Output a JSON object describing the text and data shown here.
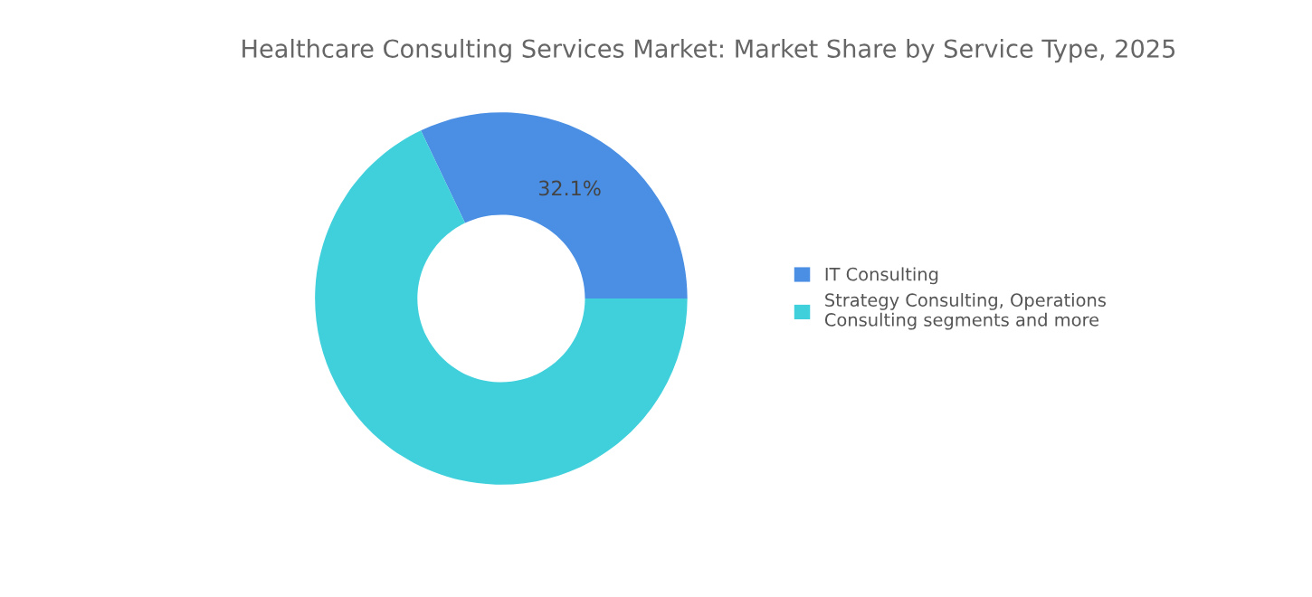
{
  "chart_data": {
    "type": "donut",
    "title": "Healthcare Consulting Services Market: Market Share by Service Type, 2025",
    "categories": [
      "IT Consulting",
      "Strategy Consulting, Operations\nConsulting segments and more"
    ],
    "values": [
      32.1,
      67.9
    ],
    "colors": [
      "#4a8fe3",
      "#40d0dc"
    ],
    "value_labels": [
      "32.1%",
      null
    ],
    "legend": "right"
  }
}
